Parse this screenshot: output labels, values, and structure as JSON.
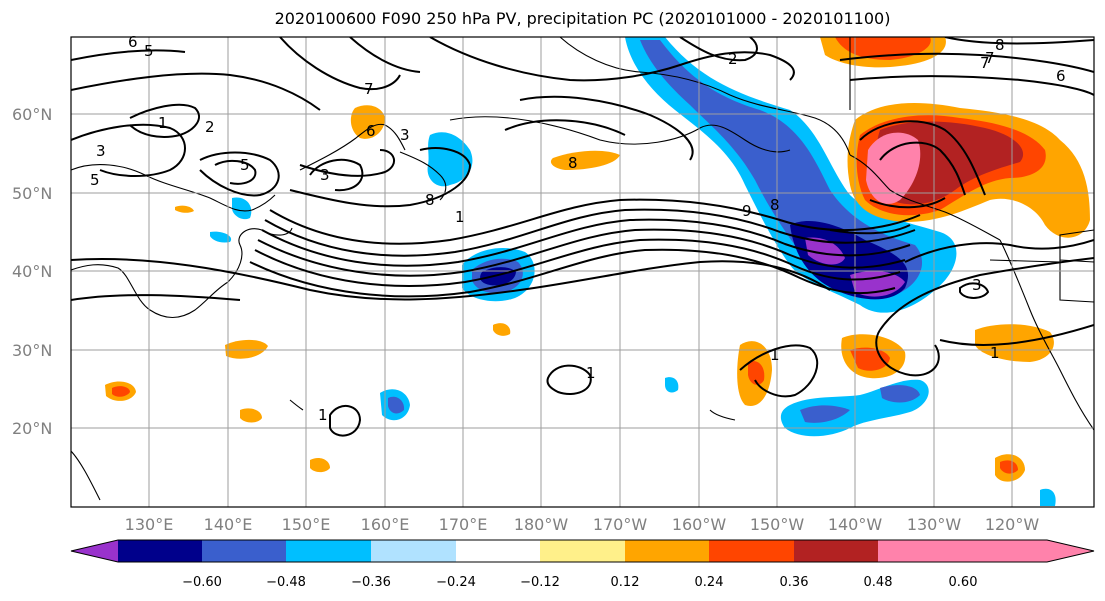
{
  "title": "2020100600 F090 250 hPa PV, precipitation PC (2020101000 - 2020101100)",
  "map": {
    "lat_labels": [
      "60°N",
      "50°N",
      "40°N",
      "30°N",
      "20°N"
    ],
    "lon_labels": [
      "130°E",
      "140°E",
      "150°E",
      "160°E",
      "170°E",
      "180°W",
      "170°W",
      "160°W",
      "150°W",
      "140°W",
      "130°W",
      "120°W"
    ],
    "contour_labels": [
      "6",
      "5",
      "7",
      "6",
      "3",
      "1",
      "2",
      "3",
      "5",
      "5",
      "3",
      "8",
      "1",
      "2",
      "8",
      "9",
      "8",
      "7",
      "3",
      "8",
      "7",
      "6",
      "1",
      "1",
      "1",
      "1"
    ]
  },
  "colorbar": {
    "ticks": [
      "−0.60",
      "−0.48",
      "−0.36",
      "−0.24",
      "−0.12",
      "0.12",
      "0.24",
      "0.36",
      "0.48",
      "0.60"
    ],
    "colors": [
      "#9932cc",
      "#00008b",
      "#3a5fcd",
      "#00bfff",
      "#b0e2ff",
      "#ffffff",
      "#fff08a",
      "#ffa500",
      "#ff4500",
      "#b22222",
      "#ff82ab",
      "#ff82ab"
    ]
  }
}
